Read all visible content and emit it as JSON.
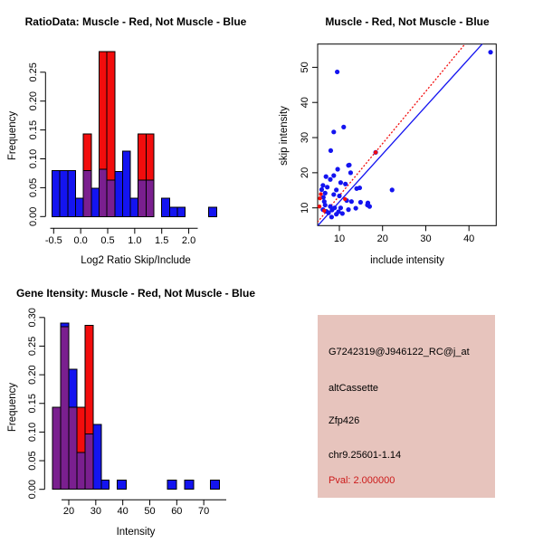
{
  "colors": {
    "red": "#f20d0d",
    "blue": "#1414f0",
    "overlap_purple": "#7a1f8f",
    "pval_red": "#cc1a1a",
    "info_bg": "#e7c4bd",
    "axis_black": "#000000",
    "background": "#ffffff"
  },
  "chart_data": [
    {
      "id": "ratio_hist",
      "type": "bar",
      "subtype": "overlaid-histogram",
      "title": "RatioData: Muscle - Red, Not Muscle - Blue",
      "xlabel": "Log2 Ratio Skip/Include",
      "ylabel": "Frequency",
      "legend": {
        "red": "Muscle",
        "blue": "Not Muscle"
      },
      "xlim": [
        -0.62,
        2.6
      ],
      "ylim": [
        0,
        0.2857
      ],
      "xticks": [
        -0.5,
        0.0,
        0.5,
        1.0,
        1.5,
        2.0
      ],
      "xtick_labels": [
        "-0.5",
        "0.0",
        "0.5",
        "1.0",
        "1.5",
        "2.0"
      ],
      "yticks": [
        0.0,
        0.05,
        0.1,
        0.15,
        0.2,
        0.25
      ],
      "ytick_labels": [
        "0.00",
        "0.05",
        "0.10",
        "0.15",
        "0.20",
        "0.25"
      ],
      "grid": false,
      "bars": [
        {
          "x0": -0.53,
          "x1": -0.385,
          "blue": 0.08,
          "red": 0
        },
        {
          "x0": -0.385,
          "x1": -0.24,
          "blue": 0.08,
          "red": 0
        },
        {
          "x0": -0.24,
          "x1": -0.095,
          "blue": 0.08,
          "red": 0
        },
        {
          "x0": -0.095,
          "x1": 0.05,
          "blue": 0.032,
          "red": 0
        },
        {
          "x0": 0.05,
          "x1": 0.195,
          "blue": 0.08,
          "red": 0.143
        },
        {
          "x0": 0.195,
          "x1": 0.34,
          "blue": 0.049,
          "red": 0
        },
        {
          "x0": 0.34,
          "x1": 0.485,
          "blue": 0.082,
          "red": 0.286
        },
        {
          "x0": 0.485,
          "x1": 0.63,
          "blue": 0.063,
          "red": 0.286
        },
        {
          "x0": 0.63,
          "x1": 0.775,
          "blue": 0.078,
          "red": 0
        },
        {
          "x0": 0.775,
          "x1": 0.92,
          "blue": 0.113,
          "red": 0
        },
        {
          "x0": 0.92,
          "x1": 1.065,
          "blue": 0.032,
          "red": 0
        },
        {
          "x0": 1.065,
          "x1": 1.21,
          "blue": 0.063,
          "red": 0.143
        },
        {
          "x0": 1.21,
          "x1": 1.355,
          "blue": 0.063,
          "red": 0.143
        },
        {
          "x0": 1.5,
          "x1": 1.645,
          "blue": 0.032,
          "red": 0
        },
        {
          "x0": 1.645,
          "x1": 1.79,
          "blue": 0.016,
          "red": 0
        },
        {
          "x0": 1.79,
          "x1": 1.935,
          "blue": 0.016,
          "red": 0
        },
        {
          "x0": 2.37,
          "x1": 2.515,
          "blue": 0.016,
          "red": 0
        }
      ]
    },
    {
      "id": "scatter",
      "type": "scatter",
      "title": "Muscle - Red, Not Muscle - Blue",
      "xlabel": "include intensity",
      "ylabel": "skip intensity",
      "xlim": [
        4.8,
        46.4
      ],
      "ylim": [
        4.9,
        56.6
      ],
      "xticks": [
        10,
        20,
        30,
        40
      ],
      "xtick_labels": [
        "10",
        "20",
        "30",
        "40"
      ],
      "yticks": [
        10,
        20,
        30,
        40,
        50
      ],
      "ytick_labels": [
        "10",
        "20",
        "30",
        "40",
        "50"
      ],
      "grid": false,
      "series": [
        {
          "name": "Not Muscle (blue points)",
          "points": [
            [
              45.0,
              54.3
            ],
            [
              9.5,
              48.7
            ],
            [
              11.0,
              33.0
            ],
            [
              8.7,
              31.6
            ],
            [
              8.0,
              26.3
            ],
            [
              18.4,
              25.8
            ],
            [
              12.3,
              22.2
            ],
            [
              9.6,
              21.0
            ],
            [
              12.1,
              22.1
            ],
            [
              12.6,
              20.0
            ],
            [
              6.9,
              18.9
            ],
            [
              8.7,
              19.2
            ],
            [
              7.9,
              18.1
            ],
            [
              10.3,
              17.2
            ],
            [
              11.4,
              16.8
            ],
            [
              6.2,
              16.4
            ],
            [
              7.2,
              15.9
            ],
            [
              9.3,
              15.1
            ],
            [
              14.0,
              15.5
            ],
            [
              14.7,
              15.7
            ],
            [
              22.2,
              15.1
            ],
            [
              6.7,
              14.2
            ],
            [
              8.7,
              13.8
            ],
            [
              10.0,
              13.4
            ],
            [
              6.3,
              13.0
            ],
            [
              5.9,
              15.2
            ],
            [
              11.7,
              12.1
            ],
            [
              12.8,
              11.8
            ],
            [
              14.9,
              11.6
            ],
            [
              16.6,
              11.4
            ],
            [
              17.0,
              10.4
            ],
            [
              13.8,
              9.9
            ],
            [
              12.1,
              9.5
            ],
            [
              10.3,
              10.0
            ],
            [
              8.9,
              10.0
            ],
            [
              7.9,
              10.4
            ],
            [
              6.7,
              10.8
            ],
            [
              6.2,
              9.5
            ],
            [
              7.5,
              8.6
            ],
            [
              9.3,
              8.2
            ],
            [
              10.7,
              8.4
            ],
            [
              8.2,
              7.4
            ],
            [
              16.5,
              10.8
            ],
            [
              7.0,
              9.0
            ],
            [
              8.3,
              9.4
            ],
            [
              9.8,
              8.9
            ],
            [
              6.5,
              11.8
            ]
          ]
        },
        {
          "name": "Muscle (red points)",
          "points": [
            [
              5.7,
              13.9
            ],
            [
              5.5,
              12.7
            ],
            [
              5.4,
              10.4
            ],
            [
              6.5,
              9.2
            ],
            [
              11.3,
              12.5
            ],
            [
              18.4,
              25.8
            ]
          ]
        }
      ],
      "lines": [
        {
          "name": "red dashed fit line",
          "from": [
            4.9,
            5.9
          ],
          "to": [
            39.2,
            56.8
          ],
          "style": "dashed"
        },
        {
          "name": "blue solid fit line",
          "from": [
            4.9,
            4.8
          ],
          "to": [
            43.2,
            56.8
          ],
          "style": "solid"
        }
      ]
    },
    {
      "id": "gene_hist",
      "type": "bar",
      "subtype": "overlaid-histogram",
      "title": "Gene Itensity: Muscle - Red, Not Muscle - Blue",
      "xlabel": "Intensity",
      "ylabel": "Frequency",
      "legend": {
        "red": "Muscle",
        "blue": "Not Muscle"
      },
      "xlim": [
        13,
        78
      ],
      "ylim": [
        0,
        0.3
      ],
      "xticks": [
        20,
        30,
        40,
        50,
        60,
        70
      ],
      "xtick_labels": [
        "20",
        "30",
        "40",
        "50",
        "60",
        "70"
      ],
      "yticks": [
        0.0,
        0.05,
        0.1,
        0.15,
        0.2,
        0.25,
        0.3
      ],
      "ytick_labels": [
        "0.00",
        "0.05",
        "0.10",
        "0.15",
        "0.20",
        "0.25",
        "0.30"
      ],
      "grid": false,
      "bars": [
        {
          "x0": 14.0,
          "x1": 17.0,
          "blue": 0.143,
          "red": 0.143
        },
        {
          "x0": 17.0,
          "x1": 20.0,
          "blue": 0.29,
          "red": 0.284
        },
        {
          "x0": 20.0,
          "x1": 23.0,
          "blue": 0.21,
          "red": 0.143
        },
        {
          "x0": 23.0,
          "x1": 26.0,
          "blue": 0.064,
          "red": 0.143
        },
        {
          "x0": 26.0,
          "x1": 29.0,
          "blue": 0.097,
          "red": 0.286
        },
        {
          "x0": 29.0,
          "x1": 32.0,
          "blue": 0.113,
          "red": 0
        },
        {
          "x0": 32.0,
          "x1": 35.0,
          "blue": 0.016,
          "red": 0
        },
        {
          "x0": 38.0,
          "x1": 41.3,
          "blue": 0.016,
          "red": 0
        },
        {
          "x0": 56.5,
          "x1": 59.9,
          "blue": 0.016,
          "red": 0
        },
        {
          "x0": 62.9,
          "x1": 66.3,
          "blue": 0.016,
          "red": 0
        },
        {
          "x0": 72.5,
          "x1": 75.9,
          "blue": 0.016,
          "red": 0
        }
      ]
    },
    {
      "id": "info",
      "type": "table",
      "rows": [
        "G7242319@J946122_RC@j_at",
        "altCassette",
        "Zfp426",
        "chr9.25601-1.14",
        "Pval: 2.000000"
      ]
    }
  ]
}
